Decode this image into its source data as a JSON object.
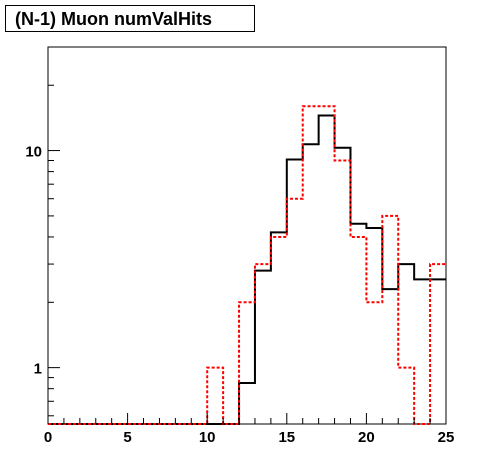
{
  "chart_data": {
    "type": "histogram",
    "title": "(N-1) Muon numValHits",
    "xlabel": "",
    "ylabel": "",
    "xlim": [
      0,
      25
    ],
    "ylim": [
      0.55,
      30
    ],
    "yscale": "log",
    "grid": false,
    "bin_edges": [
      0,
      1,
      2,
      3,
      4,
      5,
      6,
      7,
      8,
      9,
      10,
      11,
      12,
      13,
      14,
      15,
      16,
      17,
      18,
      19,
      20,
      21,
      22,
      23,
      24,
      25
    ],
    "x_ticks": [
      0,
      5,
      10,
      15,
      20,
      25
    ],
    "y_ticks": [
      1,
      10
    ],
    "series": [
      {
        "style": "solid",
        "color": "#000000",
        "values": [
          0,
          0,
          0,
          0,
          0,
          0,
          0,
          0,
          0,
          0,
          0,
          0,
          0.85,
          2.8,
          4.2,
          9.1,
          10.7,
          14.5,
          10.3,
          4.6,
          4.4,
          2.3,
          3.0,
          2.55,
          2.55
        ]
      },
      {
        "style": "dashed",
        "color": "#ff0000",
        "values": [
          0,
          0,
          0,
          0,
          0,
          0,
          0,
          0,
          0,
          0,
          1.0,
          0,
          2.0,
          3.0,
          4.0,
          6.0,
          16.0,
          16.0,
          9.0,
          4.0,
          2.0,
          5.0,
          1.0,
          0,
          3.0
        ]
      }
    ]
  }
}
